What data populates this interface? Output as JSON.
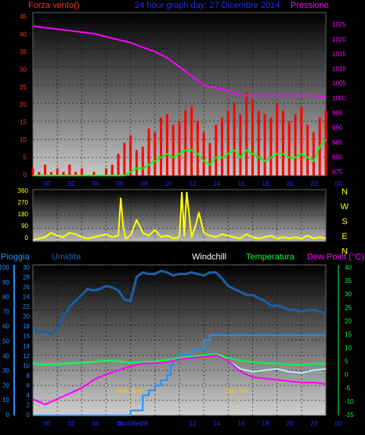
{
  "colors": {
    "wind": "#ff0000",
    "gust": "#00ff00",
    "pressure": "#ff00ff",
    "direction": "#ffff00",
    "humidity": "#1a5fa8",
    "rain": "#1e90ff",
    "temperature": "#00ff40",
    "dewpoint": "#ff00ff",
    "windchill": "#b0f0f0",
    "title": "#2030ff",
    "tick_left": "#ff3030",
    "tick_right": "#ff00ff",
    "grid": "#000000"
  },
  "panel1": {
    "title_left": "Forza vento()",
    "title_center": "24 hour graph day:  27 Dicembre 2014",
    "title_right": "Pressione",
    "left_ticks": [
      "45",
      "40",
      "35",
      "30",
      "25",
      "20",
      "15",
      "10",
      "5",
      "0"
    ],
    "right_ticks": [
      "1025",
      "1020",
      "1015",
      "1010",
      "1005",
      "1000",
      "995",
      "990",
      "985",
      "980",
      "975"
    ],
    "x_ticks": [
      "00",
      "02",
      "04",
      "06",
      "08",
      "10",
      "12",
      "14",
      "16",
      "18",
      "20",
      "22",
      "00"
    ]
  },
  "panel2": {
    "left_ticks": [
      "360",
      "270",
      "180",
      "90",
      "0"
    ],
    "compass": [
      "N",
      "W",
      "S",
      "E",
      "N"
    ]
  },
  "panel3": {
    "legend_rain": "Pioggia",
    "legend_humidity": "Umidita",
    "legend_windchill": "Windchill",
    "legend_temperature": "Temperatura",
    "legend_dewpoint": "Dew Point (°C)",
    "hum_ticks": [
      "100",
      "90",
      "80",
      "70",
      "60",
      "50",
      "40",
      "30",
      "20",
      "10",
      "0"
    ],
    "rain_ticks": [
      "30",
      "28",
      "26",
      "24",
      "22",
      "20",
      "18",
      "16",
      "14",
      "12",
      "10",
      "8",
      "6",
      "4",
      "2",
      "0"
    ],
    "temp_ticks": [
      "40",
      "35",
      "30",
      "25",
      "20",
      "15",
      "10",
      "5",
      "0",
      "-5",
      "-10",
      "-15"
    ],
    "x_ticks": [
      "00",
      "02",
      "04",
      "06",
      "08",
      "10",
      "12",
      "14",
      "16",
      "18",
      "20",
      "22",
      "00"
    ],
    "sunrise_label": "Sun Rise",
    "sunset_label": "Sun Set",
    "sunrise_x_label": "Sun08ec"
  },
  "chart_data": [
    {
      "type": "line",
      "x_unit": "hour",
      "x_range": [
        0,
        24
      ],
      "series": [
        {
          "axis": "wind",
          "ylim": [
            0,
            45
          ],
          "x": [
            0,
            0.5,
            1,
            1.5,
            2,
            2.5,
            3,
            3.5,
            4,
            4.5,
            5,
            5.5,
            6,
            6.5,
            7,
            7.5,
            8,
            8.5,
            9,
            9.5,
            10,
            10.5,
            11,
            11.5,
            12,
            12.5,
            13,
            13.5,
            14,
            14.5,
            15,
            15.5,
            16,
            16.5,
            17,
            17.5,
            18,
            18.5,
            19,
            19.5,
            20,
            20.5,
            21,
            21.5,
            22,
            22.5,
            23,
            23.5,
            24
          ],
          "values": [
            2,
            1,
            3,
            1,
            2,
            1,
            3,
            1,
            2,
            0,
            1,
            0,
            2,
            3,
            6,
            9,
            11,
            7,
            8,
            13,
            12,
            16,
            17,
            14,
            15,
            18,
            19,
            15,
            12,
            9,
            14,
            16,
            18,
            20,
            17,
            23,
            21,
            18,
            17,
            16,
            20,
            18,
            15,
            17,
            19,
            14,
            12,
            16,
            18
          ]
        },
        {
          "axis": "gust",
          "ylim": [
            0,
            45
          ],
          "x": [
            0,
            1,
            2,
            3,
            4,
            5,
            6,
            6.5,
            7,
            7.5,
            8,
            8.5,
            9,
            9.5,
            10,
            10.5,
            11,
            11.5,
            12,
            12.5,
            13,
            13.5,
            14,
            14.5,
            15,
            15.5,
            16,
            16.5,
            17,
            17.5,
            18,
            18.5,
            19,
            19.5,
            20,
            20.5,
            21,
            21.5,
            22,
            22.5,
            23,
            23.5,
            24
          ],
          "values": [
            0,
            0,
            0,
            0,
            0,
            0,
            0,
            0,
            0,
            0,
            1,
            2,
            2,
            3,
            4,
            5,
            6,
            5,
            6,
            7,
            7,
            6,
            4,
            3,
            5,
            5,
            6,
            7,
            5,
            7,
            6,
            5,
            4,
            5,
            6,
            6,
            5,
            5,
            6,
            5,
            4,
            8,
            10
          ]
        },
        {
          "axis": "pressure",
          "ylim": [
            975,
            1029
          ],
          "x": [
            0,
            1,
            2,
            3,
            4,
            5,
            6,
            7,
            8,
            9,
            10,
            11,
            12,
            13,
            14,
            15,
            16,
            17,
            18,
            19,
            20,
            21,
            22,
            23,
            24
          ],
          "values": [
            1024.5,
            1024,
            1023.5,
            1023,
            1022.5,
            1022,
            1021,
            1020,
            1019,
            1017.5,
            1016,
            1014,
            1011,
            1008,
            1005,
            1004,
            1003,
            1001.5,
            1001.5,
            1001.5,
            1001.5,
            1001.5,
            1001.5,
            1001.5,
            1001
          ]
        }
      ]
    },
    {
      "type": "line",
      "x_unit": "hour",
      "x_range": [
        0,
        24
      ],
      "ylim": [
        0,
        360
      ],
      "series": [
        {
          "axis": "direction",
          "x": [
            0,
            0.5,
            1,
            1.5,
            2,
            2.5,
            3,
            3.5,
            4,
            4.5,
            5,
            5.5,
            6,
            6.5,
            7,
            7.2,
            7.4,
            7.6,
            8,
            8.5,
            9,
            9.5,
            10,
            10.5,
            11,
            11.5,
            12,
            12.2,
            12.4,
            12.6,
            13,
            13.3,
            13.6,
            14,
            14.5,
            15,
            15.5,
            16,
            16.5,
            17,
            17.5,
            18,
            18.5,
            19,
            19.5,
            20,
            20.5,
            21,
            21.5,
            22,
            22.5,
            23,
            23.5,
            24
          ],
          "values": [
            10,
            20,
            30,
            60,
            40,
            30,
            60,
            50,
            30,
            20,
            30,
            40,
            50,
            30,
            40,
            300,
            100,
            20,
            40,
            150,
            60,
            40,
            80,
            30,
            40,
            20,
            30,
            340,
            40,
            340,
            30,
            100,
            200,
            60,
            40,
            30,
            50,
            40,
            30,
            20,
            50,
            30,
            20,
            30,
            40,
            20,
            30,
            20,
            30,
            20,
            40,
            20,
            30,
            20
          ]
        }
      ]
    },
    {
      "type": "line",
      "x_unit": "hour",
      "x_range": [
        0,
        24
      ],
      "series": [
        {
          "axis": "humidity",
          "ylim": [
            0,
            100
          ],
          "x": [
            0,
            0.5,
            1,
            1.5,
            2,
            2.5,
            3,
            3.5,
            4,
            4.5,
            5,
            5.5,
            6,
            6.5,
            7,
            7.5,
            8,
            8.5,
            9,
            9.5,
            10,
            10.5,
            11,
            11.5,
            12,
            12.5,
            13,
            13.5,
            14,
            14.5,
            15,
            15.5,
            16,
            16.5,
            17,
            17.5,
            18,
            18.5,
            19,
            19.5,
            20,
            20.5,
            21,
            21.5,
            22,
            22.5,
            23,
            23.5,
            24
          ],
          "values": [
            58,
            55,
            56,
            54,
            58,
            66,
            72,
            76,
            80,
            84,
            83,
            84,
            86,
            85,
            83,
            77,
            76,
            92,
            95,
            94,
            94,
            96,
            95,
            93,
            94,
            94,
            95,
            94,
            93,
            95,
            95,
            91,
            86,
            84,
            82,
            80,
            80,
            78,
            76,
            73,
            73,
            72,
            70,
            70,
            69,
            70,
            70,
            69,
            68
          ]
        },
        {
          "axis": "rain",
          "ylim": [
            0,
            30
          ],
          "x": [
            0,
            7.5,
            8,
            9,
            9.5,
            10,
            10.5,
            11,
            11.3,
            11.5,
            12,
            13,
            14,
            14.5,
            15,
            16,
            17,
            18,
            19,
            20,
            21,
            22,
            23,
            24
          ],
          "values": [
            0,
            0,
            1,
            4,
            5,
            6,
            7,
            8,
            10,
            11,
            12,
            13,
            15,
            16,
            16,
            16,
            16,
            16,
            16,
            16,
            16,
            16,
            16,
            16
          ]
        },
        {
          "axis": "temperature",
          "ylim": [
            -15,
            40
          ],
          "x": [
            0,
            1,
            2,
            3,
            4,
            5,
            6,
            7,
            8,
            9,
            10,
            11,
            12,
            13,
            14,
            15,
            16,
            17,
            18,
            19,
            20,
            21,
            22,
            23,
            24
          ],
          "values": [
            4,
            3.5,
            3.8,
            4,
            4.2,
            4.6,
            5,
            4.8,
            4.2,
            4.5,
            4.8,
            5.2,
            6,
            6.5,
            7,
            7.5,
            6,
            5,
            4.5,
            4,
            4,
            3.5,
            3.5,
            3.8,
            4
          ]
        },
        {
          "axis": "dewpoint",
          "ylim": [
            -15,
            40
          ],
          "x": [
            0,
            1,
            2,
            3,
            4,
            5,
            6,
            7,
            8,
            9,
            10,
            11,
            12,
            13,
            14,
            15,
            16,
            17,
            18,
            19,
            20,
            21,
            22,
            23,
            24
          ],
          "values": [
            -9,
            -11,
            -9,
            -7,
            -5,
            -2,
            0,
            1.5,
            3,
            4,
            4,
            4.5,
            5.5,
            6,
            6.5,
            7,
            5,
            1,
            -1,
            -1.5,
            -2,
            -2.5,
            -3,
            -3,
            -3.5
          ]
        },
        {
          "axis": "windchill",
          "ylim": [
            -15,
            40
          ],
          "x": [
            0,
            1,
            2,
            3,
            4,
            5,
            6,
            7,
            8,
            9,
            10,
            11,
            12,
            13,
            14,
            15,
            16,
            17,
            18,
            19,
            20,
            21,
            22,
            23,
            24
          ],
          "values": [
            4,
            3.5,
            3.8,
            4,
            4.2,
            4.6,
            5,
            4.8,
            4.2,
            4.5,
            4.8,
            5.2,
            6,
            6.5,
            7,
            7.5,
            5,
            2,
            1,
            1.5,
            2,
            1,
            0.5,
            1.5,
            2
          ]
        }
      ]
    }
  ]
}
